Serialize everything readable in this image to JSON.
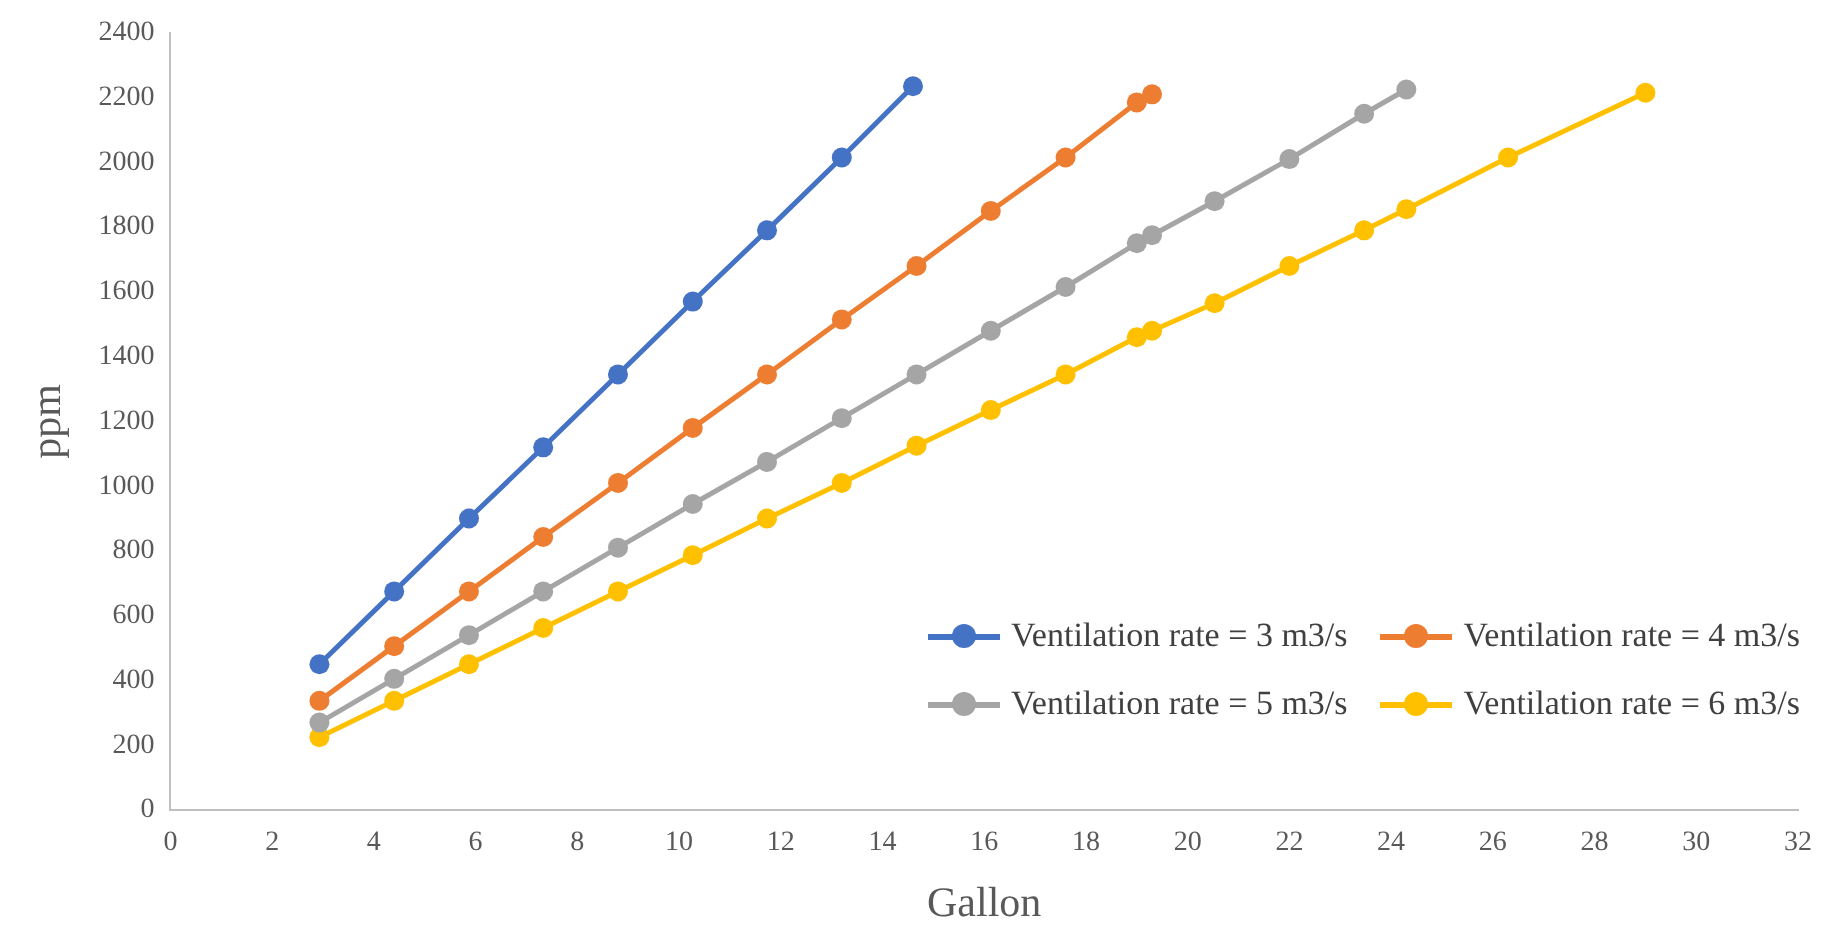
{
  "chart_data": {
    "type": "line",
    "xlabel": "Gallon",
    "ylabel": "ppm",
    "xlim": [
      0,
      32
    ],
    "xticks": [
      0,
      2,
      4,
      6,
      8,
      10,
      12,
      14,
      16,
      18,
      20,
      22,
      24,
      26,
      28,
      30,
      32
    ],
    "ylim": [
      0,
      2400
    ],
    "yticks": [
      0,
      200,
      400,
      600,
      800,
      1000,
      1200,
      1400,
      1600,
      1800,
      2000,
      2200,
      2400
    ],
    "grid": false,
    "legend": "bottom right",
    "marker": "circle",
    "line_style": "solid",
    "series": [
      {
        "name": "Ventilation rate = 3 m3/s",
        "color": "#4472c4",
        "x": [
          2.93,
          4.4,
          5.87,
          7.33,
          8.8,
          10.27,
          11.73,
          13.2,
          14.6
        ],
        "values": [
          450,
          675,
          900,
          1120,
          1345,
          1570,
          1790,
          2015,
          2235
        ]
      },
      {
        "name": "Ventilation rate = 4 m3/s",
        "color": "#ed7d31",
        "x": [
          2.93,
          4.4,
          5.87,
          7.33,
          8.8,
          10.27,
          11.73,
          13.2,
          14.67,
          16.13,
          17.6,
          19.0,
          19.3
        ],
        "values": [
          337,
          506,
          675,
          843,
          1010,
          1180,
          1345,
          1515,
          1680,
          1850,
          2015,
          2185,
          2210
        ]
      },
      {
        "name": "Ventilation rate = 5 m3/s",
        "color": "#a5a5a5",
        "x": [
          2.93,
          4.4,
          5.87,
          7.33,
          8.8,
          10.27,
          11.73,
          13.2,
          14.67,
          16.13,
          17.6,
          19.0,
          19.3,
          20.53,
          22,
          23.47,
          24.3
        ],
        "values": [
          270,
          405,
          540,
          675,
          810,
          945,
          1075,
          1210,
          1345,
          1480,
          1615,
          1750,
          1775,
          1880,
          2010,
          2150,
          2225
        ]
      },
      {
        "name": "Ventilation rate = 6 m3/s",
        "color": "#ffc000",
        "x": [
          2.93,
          4.4,
          5.87,
          7.33,
          8.8,
          10.27,
          11.73,
          13.2,
          14.67,
          16.13,
          17.6,
          19.0,
          19.3,
          20.53,
          22,
          23.47,
          24.3,
          26.3,
          29
        ],
        "values": [
          225,
          337,
          450,
          562,
          675,
          787,
          900,
          1010,
          1125,
          1235,
          1345,
          1460,
          1480,
          1565,
          1680,
          1790,
          1855,
          2015,
          2215
        ]
      }
    ]
  }
}
